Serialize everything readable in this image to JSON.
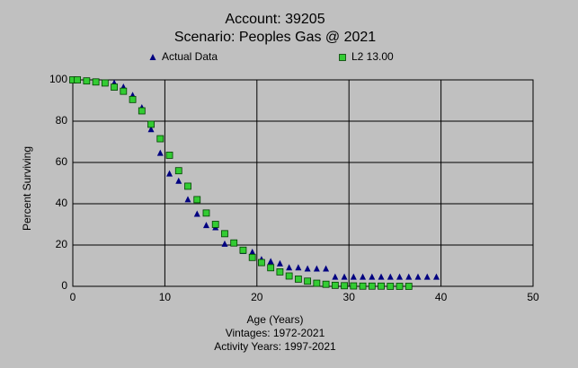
{
  "chart_data": {
    "type": "scatter",
    "title": "Account: 39205",
    "subtitle": "Scenario: Peoples Gas @ 2021",
    "x_label": "Age (Years)",
    "y_label": "Percent Surviving",
    "footnotes": [
      "Vintages: 1972-2021",
      "Activity Years: 1997-2021"
    ],
    "xlim": [
      0,
      50
    ],
    "xticks": [
      0,
      10,
      20,
      30,
      40,
      50
    ],
    "ylim": [
      0,
      100
    ],
    "yticks": [
      0,
      20,
      40,
      60,
      80,
      100
    ],
    "grid": true,
    "series": [
      {
        "name": "Actual Data",
        "color": "#000080",
        "marker": "triangle",
        "x": [
          0,
          0.5,
          1.5,
          2.5,
          3.5,
          4.5,
          5.5,
          6.5,
          7.5,
          8.5,
          9.5,
          10.5,
          11.5,
          12.5,
          13.5,
          14.5,
          15.5,
          16.5,
          17.5,
          18.5,
          19.5,
          20.5,
          21.5,
          22.5,
          23.5,
          24.5,
          25.5,
          26.5,
          27.5,
          28.5,
          29.5,
          30.5,
          31.5,
          32.5,
          33.5,
          34.5,
          35.5,
          36.5,
          37.5,
          38.5,
          39.5
        ],
        "values": [
          100,
          100,
          99.5,
          99,
          98.5,
          98.5,
          96.5,
          92.5,
          86.5,
          76,
          64.5,
          54.5,
          51,
          42,
          35,
          29.5,
          28.5,
          20.5,
          21,
          17,
          16.5,
          13,
          12,
          11,
          9,
          9,
          8.5,
          8.5,
          8.5,
          4.5,
          4.5,
          4.5,
          4.5,
          4.5,
          4.5,
          4.5,
          4.5,
          4.5,
          4.5,
          4.5,
          4.5
        ]
      },
      {
        "name": "L2 13.00",
        "color": "#33cc33",
        "marker": "square",
        "x": [
          0,
          0.5,
          1.5,
          2.5,
          3.5,
          4.5,
          5.5,
          6.5,
          7.5,
          8.5,
          9.5,
          10.5,
          11.5,
          12.5,
          13.5,
          14.5,
          15.5,
          16.5,
          17.5,
          18.5,
          19.5,
          20.5,
          21.5,
          22.5,
          23.5,
          24.5,
          25.5,
          26.5,
          27.5,
          28.5,
          29.5,
          30.5,
          31.5,
          32.5,
          33.5,
          34.5,
          35.5,
          36.5
        ],
        "values": [
          100,
          100,
          99.5,
          99,
          98.5,
          96.5,
          94.5,
          90.5,
          85,
          78.5,
          71.5,
          63.5,
          56,
          48.5,
          42,
          35.5,
          30,
          25.5,
          21,
          17.5,
          14,
          11.5,
          9,
          7,
          5,
          3.5,
          2.5,
          1.5,
          1,
          0.5,
          0.3,
          0.2,
          0.1,
          0.1,
          0.1,
          0,
          0,
          0
        ]
      }
    ]
  }
}
